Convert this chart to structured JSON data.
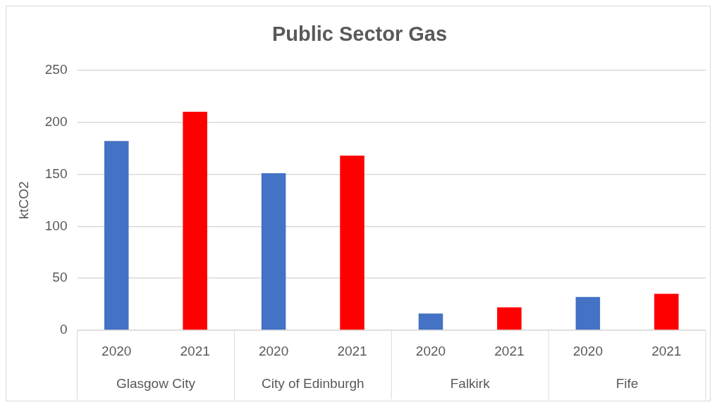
{
  "chart_data": {
    "type": "bar",
    "title": "Public Sector Gas",
    "ylabel": "ktCO2",
    "categories": [
      "Glasgow City",
      "City of Edinburgh",
      "Falkirk",
      "Fife"
    ],
    "series": [
      {
        "name": "2020",
        "color": "#4472c4",
        "values": [
          182,
          151,
          16,
          32
        ]
      },
      {
        "name": "2021",
        "color": "#ff0000",
        "values": [
          210,
          168,
          22,
          35
        ]
      }
    ],
    "ylim": [
      0,
      250
    ],
    "yticks": [
      0,
      50,
      100,
      150,
      200,
      250
    ],
    "grid": "y",
    "legend": false
  }
}
